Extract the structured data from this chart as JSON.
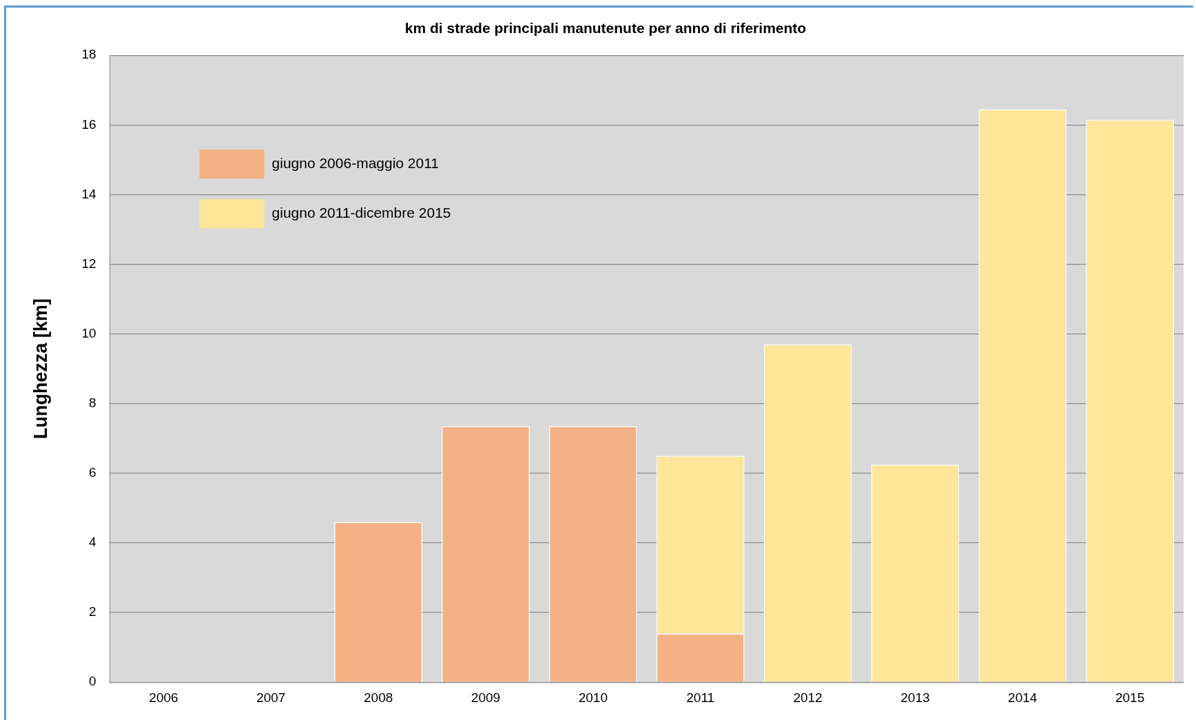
{
  "chart_data": {
    "type": "bar",
    "title": "km di strade principali manutenute per anno di riferimento",
    "ylabel": "Lunghezza [km]",
    "categories": [
      "2006",
      "2007",
      "2008",
      "2009",
      "2010",
      "2011",
      "2012",
      "2013",
      "2014",
      "2015"
    ],
    "series": [
      {
        "name": "giugno 2006-maggio 2011",
        "color": "#f4b183",
        "values": [
          null,
          null,
          4.6,
          7.35,
          7.35,
          1.4,
          null,
          null,
          null,
          null
        ]
      },
      {
        "name": "giugno 2011-dicembre 2015",
        "color": "#ffe699",
        "values": [
          null,
          null,
          null,
          null,
          null,
          5.1,
          9.7,
          6.25,
          16.45,
          16.15
        ]
      }
    ],
    "stacked": true,
    "ylim": [
      0,
      18
    ],
    "yticks": [
      0,
      2,
      4,
      6,
      8,
      10,
      12,
      14,
      16,
      18
    ],
    "grid": "y",
    "legend": "top left"
  }
}
